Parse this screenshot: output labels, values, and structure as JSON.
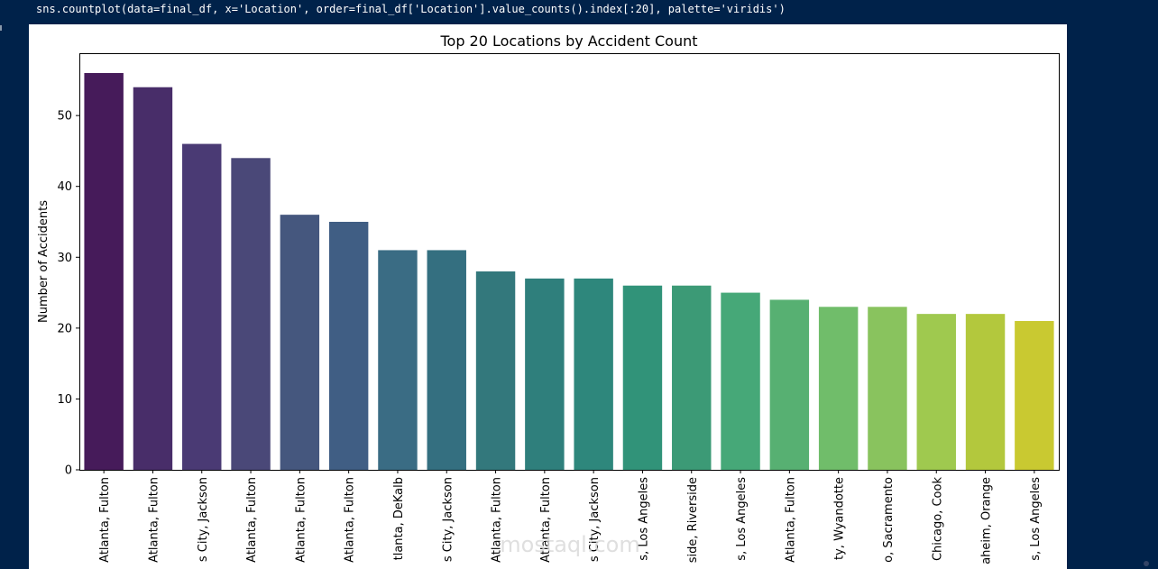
{
  "code_line": "sns.countplot(data=final_df, x='Location', order=final_df['Location'].value_counts().index[:20], palette='viridis')",
  "watermark": "mostaql.com",
  "chart_data": {
    "type": "bar",
    "title": "Top 20 Locations by Accident Count",
    "xlabel": "",
    "ylabel": "Number of Accidents",
    "ylim": [
      0,
      58.8
    ],
    "yticks": [
      0,
      10,
      20,
      30,
      40,
      50
    ],
    "grid": false,
    "categories": [
      "Atlanta, Fulton",
      "Atlanta, Fulton",
      "s City, Jackson",
      "Atlanta, Fulton",
      "Atlanta, Fulton",
      "Atlanta, Fulton",
      "tlanta, DeKalb",
      "s City, Jackson",
      "Atlanta, Fulton",
      "Atlanta, Fulton",
      "s City, Jackson",
      "s, Los Angeles",
      "side, Riverside",
      "s, Los Angeles",
      "Atlanta, Fulton",
      "ty, Wyandotte",
      "o, Sacramento",
      "Chicago, Cook",
      "aheim, Orange",
      "s, Los Angeles"
    ],
    "values": [
      56,
      54,
      46,
      44,
      36,
      35,
      31,
      31,
      28,
      27,
      27,
      26,
      26,
      25,
      24,
      23,
      23,
      22,
      22,
      21
    ],
    "colors": [
      "#461b5a",
      "#482d69",
      "#4a3a74",
      "#4a4878",
      "#45577e",
      "#405e84",
      "#3a6c84",
      "#346f80",
      "#33787c",
      "#2f7f7c",
      "#2e877c",
      "#319379",
      "#3c9a76",
      "#46a878",
      "#57b072",
      "#70bd6a",
      "#89c35e",
      "#9fc94f",
      "#b3c83d",
      "#c9c931"
    ]
  }
}
